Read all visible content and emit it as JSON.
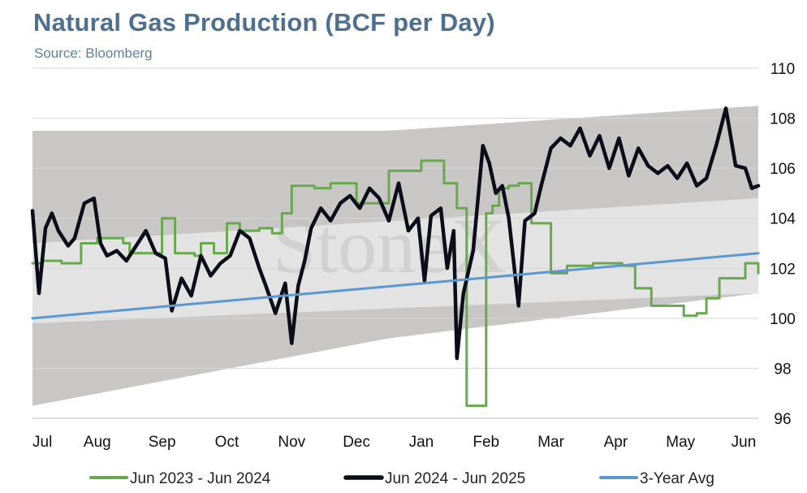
{
  "chart_data": {
    "type": "line",
    "title": "Natural Gas Production (BCF per Day)",
    "subtitle": "Source: Bloomberg",
    "watermark": "StoneX",
    "xlabel": "",
    "ylabel": "",
    "ylim": [
      96,
      110
    ],
    "y_ticks": [
      96,
      98,
      100,
      102,
      104,
      106,
      108,
      110
    ],
    "y_axis_side": "right",
    "grid": true,
    "legend_position": "bottom",
    "x_ticks": [
      "Jul",
      "Aug",
      "Sep",
      "Oct",
      "Nov",
      "Dec",
      "Jan",
      "Feb",
      "Mar",
      "Apr",
      "May",
      "Jun"
    ],
    "x_range_months": [
      0,
      11.2
    ],
    "shaded_ranges": [
      {
        "name": "range-outer",
        "color": "#c8c7c6",
        "x": [
          0,
          5.5,
          11.2
        ],
        "upper": [
          107.5,
          107.5,
          108.5
        ],
        "lower": [
          96.5,
          99.2,
          101.0
        ]
      },
      {
        "name": "range-inner",
        "color": "#e3e3e3",
        "x": [
          0,
          11.2
        ],
        "upper": [
          103.0,
          104.8
        ],
        "lower": [
          99.8,
          101.0
        ]
      }
    ],
    "series": [
      {
        "name": "Jun 2023 - Jun 2024",
        "color": "#6aa84f",
        "width": 3,
        "step": true,
        "x": [
          0,
          0.15,
          0.45,
          0.75,
          1.0,
          1.4,
          1.5,
          1.8,
          2.0,
          2.2,
          2.5,
          2.6,
          2.8,
          3.0,
          3.2,
          3.5,
          3.7,
          3.85,
          4.0,
          4.35,
          4.6,
          5.0,
          5.5,
          6.0,
          6.35,
          6.55,
          6.7,
          7.0,
          7.1,
          7.2,
          7.35,
          7.5,
          7.7,
          8.0,
          8.25,
          8.65,
          9.1,
          9.3,
          9.55,
          10.05,
          10.25,
          10.4,
          10.6,
          11.0,
          11.2
        ],
        "values": [
          102.2,
          102.3,
          102.2,
          103.0,
          103.2,
          103.0,
          102.6,
          102.6,
          104.0,
          102.6,
          102.5,
          103.0,
          102.6,
          103.8,
          103.5,
          103.6,
          103.4,
          104.2,
          105.3,
          105.2,
          105.4,
          104.6,
          105.9,
          106.3,
          105.4,
          104.4,
          96.5,
          104.2,
          104.5,
          105.2,
          105.3,
          105.4,
          103.8,
          101.8,
          102.1,
          102.2,
          102.1,
          101.2,
          100.5,
          100.1,
          100.2,
          100.8,
          101.6,
          102.2,
          101.8
        ]
      },
      {
        "name": "Jun 2024 - Jun 2025",
        "color": "#0b0e18",
        "width": 4.5,
        "step": false,
        "x": [
          0,
          0.1,
          0.2,
          0.3,
          0.4,
          0.55,
          0.65,
          0.8,
          0.95,
          1.05,
          1.15,
          1.3,
          1.45,
          1.6,
          1.75,
          1.9,
          2.05,
          2.15,
          2.3,
          2.45,
          2.6,
          2.75,
          2.9,
          3.05,
          3.2,
          3.35,
          3.5,
          3.6,
          3.75,
          3.9,
          4.0,
          4.1,
          4.2,
          4.3,
          4.45,
          4.6,
          4.75,
          4.9,
          5.05,
          5.2,
          5.35,
          5.5,
          5.65,
          5.8,
          5.95,
          6.05,
          6.15,
          6.3,
          6.4,
          6.5,
          6.55,
          6.65,
          6.8,
          6.95,
          7.05,
          7.15,
          7.25,
          7.35,
          7.5,
          7.6,
          7.75,
          7.85,
          8.0,
          8.15,
          8.3,
          8.45,
          8.6,
          8.75,
          8.9,
          9.05,
          9.2,
          9.35,
          9.5,
          9.65,
          9.8,
          9.95,
          10.1,
          10.25,
          10.4,
          10.55,
          10.7,
          10.85,
          11.0,
          11.1,
          11.2
        ],
        "values": [
          104.3,
          101.0,
          103.6,
          104.2,
          103.5,
          102.9,
          103.2,
          104.6,
          104.8,
          103.0,
          102.5,
          102.7,
          102.3,
          102.9,
          103.5,
          102.6,
          102.4,
          100.3,
          101.6,
          100.9,
          102.5,
          101.7,
          102.2,
          102.5,
          103.5,
          103.2,
          102.0,
          101.3,
          100.2,
          101.4,
          99.0,
          101.3,
          102.3,
          103.6,
          104.4,
          103.9,
          104.6,
          104.9,
          104.4,
          105.2,
          104.8,
          103.9,
          105.4,
          103.5,
          104.0,
          101.5,
          104.1,
          104.4,
          102.0,
          103.5,
          98.4,
          101.0,
          102.7,
          106.9,
          106.2,
          105.0,
          105.3,
          104.0,
          100.5,
          103.9,
          104.2,
          105.3,
          106.8,
          107.2,
          106.9,
          107.6,
          106.5,
          107.3,
          106.0,
          107.2,
          105.7,
          106.8,
          106.1,
          105.8,
          106.1,
          105.6,
          106.2,
          105.3,
          105.6,
          106.9,
          108.4,
          106.1,
          106.0,
          105.2,
          105.3
        ]
      },
      {
        "name": "3-Year Avg",
        "color": "#5b97d1",
        "width": 3,
        "step": false,
        "x": [
          0,
          11.2
        ],
        "values": [
          100.0,
          102.6
        ]
      }
    ]
  }
}
